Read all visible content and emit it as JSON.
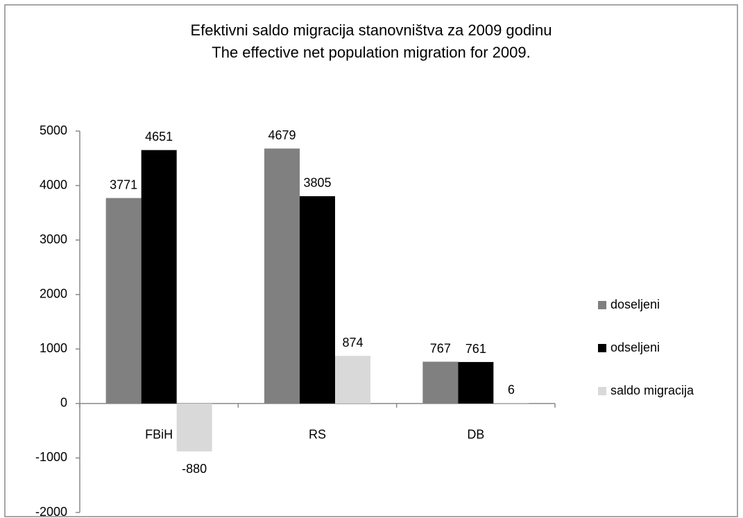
{
  "chart_data": {
    "type": "bar",
    "title": "Efektivni saldo migracija stanovništva za 2009 godinu",
    "subtitle": "The effective net population migration for 2009.",
    "categories": [
      "FBiH",
      "RS",
      "DB"
    ],
    "series": [
      {
        "name": "doseljeni",
        "color": "#808080",
        "values": [
          3771,
          4679,
          767
        ]
      },
      {
        "name": "odseljeni",
        "color": "#000000",
        "values": [
          4651,
          3805,
          761
        ]
      },
      {
        "name": "saldo migracija",
        "color": "#d9d9d9",
        "values": [
          -880,
          874,
          6
        ]
      }
    ],
    "ylim": [
      -2000,
      5000
    ],
    "yticks": [
      -2000,
      -1000,
      0,
      1000,
      2000,
      3000,
      4000,
      5000
    ],
    "legend": "right"
  }
}
